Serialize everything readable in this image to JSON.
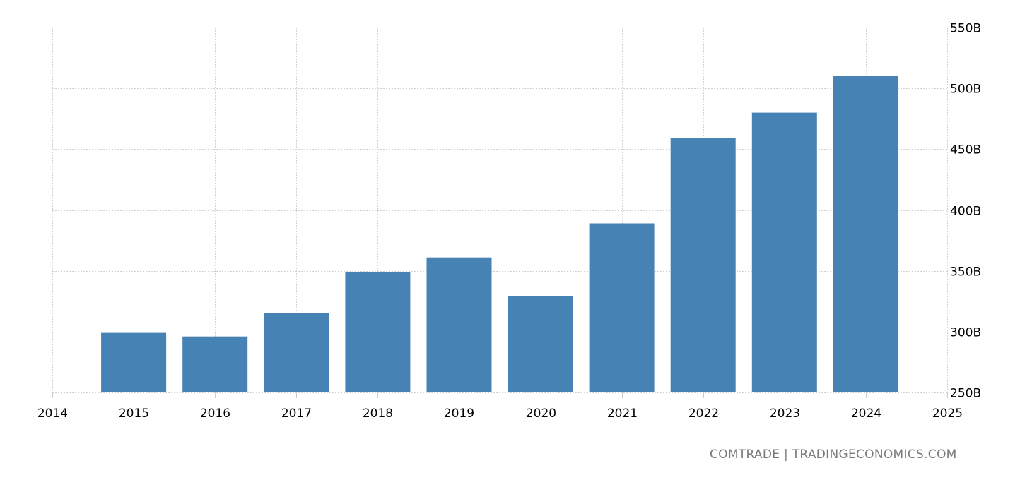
{
  "chart_data": {
    "type": "bar",
    "title": "",
    "xlabel": "",
    "ylabel": "",
    "categories": [
      "2015",
      "2016",
      "2017",
      "2018",
      "2019",
      "2020",
      "2021",
      "2022",
      "2023",
      "2024"
    ],
    "values": [
      299,
      296,
      315,
      349,
      361,
      329,
      389,
      459,
      480,
      510
    ],
    "unit": "B",
    "ylim": [
      250,
      550
    ],
    "yticks": [
      "250B",
      "300B",
      "350B",
      "400B",
      "450B",
      "500B",
      "550B"
    ],
    "ytick_values": [
      250,
      300,
      350,
      400,
      450,
      500,
      550
    ],
    "xticks": [
      "2014",
      "2015",
      "2016",
      "2017",
      "2018",
      "2019",
      "2020",
      "2021",
      "2022",
      "2023",
      "2024",
      "2025"
    ],
    "xlim": [
      2014,
      2025
    ],
    "grid": true,
    "legend": null,
    "bar_color": "#4682b4",
    "grid_color": "#d0d0d0"
  },
  "footer": {
    "source": "COMTRADE | TRADINGECONOMICS.COM"
  }
}
